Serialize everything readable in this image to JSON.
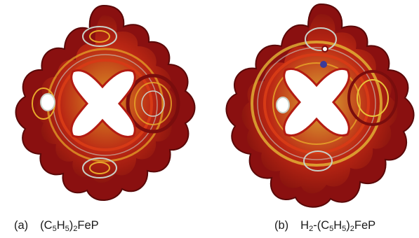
{
  "panels": [
    {
      "tag": "(a)",
      "formula": {
        "p1": "(C",
        "s1": "5",
        "p2": "H",
        "s2": "5",
        "p3": ")",
        "s3": "2",
        "p4": "FeP"
      },
      "colors": {
        "outer": "#7a0d0d",
        "mid": "#b31b12",
        "inner": "#d63a16",
        "hot": "#e8a92a",
        "streak": "#c9d0c7"
      }
    },
    {
      "tag": "(b)",
      "formula": {
        "p0": "H",
        "s0": "2",
        "d0": "-(C",
        "s1": "5",
        "p2": "H",
        "s2": "5",
        "p3": ")",
        "s3": "2",
        "p4": "FeP"
      },
      "colors": {
        "outer": "#7a0d0d",
        "mid": "#b31b12",
        "inner": "#d63a16",
        "hot": "#e8a92a",
        "streak": "#c9d0c7"
      }
    }
  ]
}
